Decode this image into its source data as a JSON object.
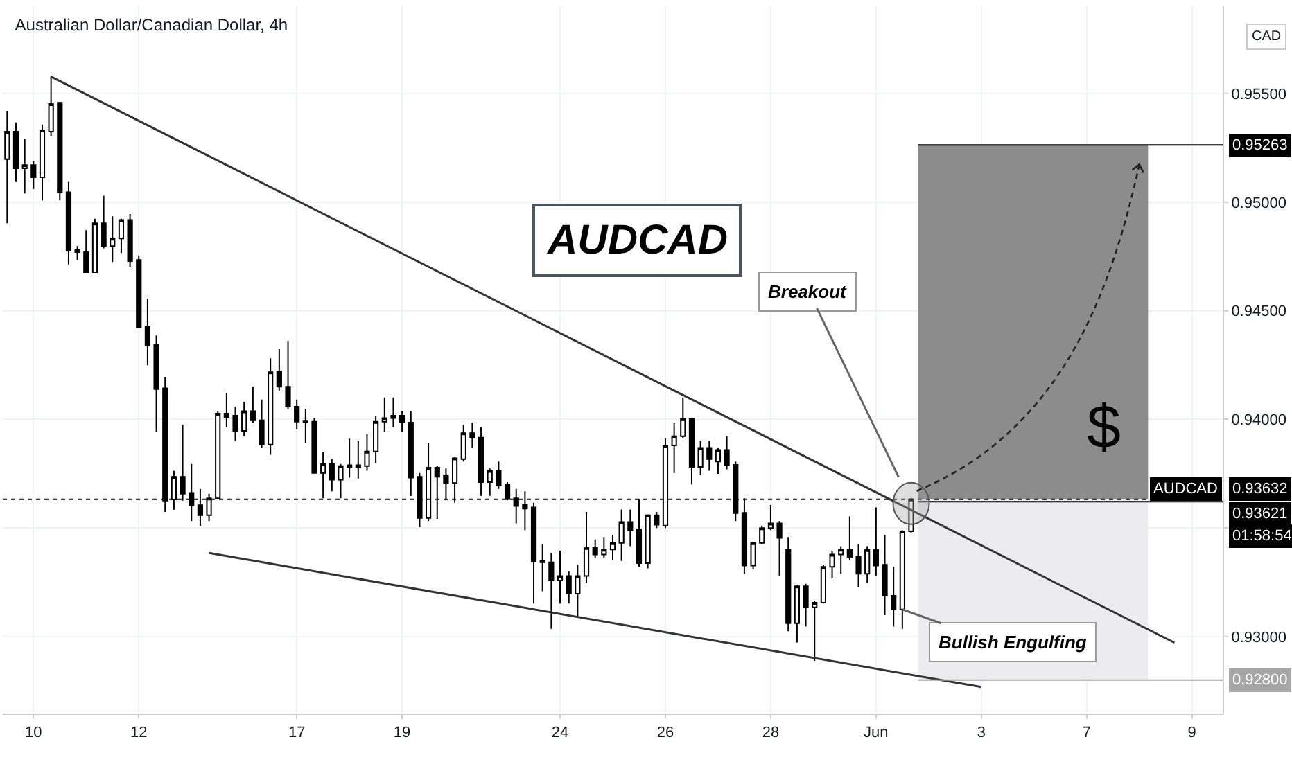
{
  "chart_data": {
    "type": "candlestick",
    "title": "Australian Dollar/Canadian Dollar, 4h",
    "categories": [
      null,
      null,
      null,
      "10",
      null,
      null,
      null,
      null,
      null,
      null,
      null,
      null,
      null,
      null,
      null,
      "12",
      null,
      null,
      null,
      null,
      null,
      null,
      null,
      null,
      null,
      null,
      null,
      null,
      null,
      null,
      null,
      null,
      null,
      "17",
      null,
      null,
      null,
      null,
      null,
      null,
      null,
      null,
      null,
      null,
      null,
      "19",
      null,
      null,
      null,
      null,
      null,
      null,
      null,
      null,
      null,
      null,
      null,
      null,
      null,
      null,
      null,
      null,
      null,
      "24",
      null,
      null,
      null,
      null,
      null,
      null,
      null,
      null,
      null,
      null,
      null,
      "26",
      null,
      null,
      null,
      null,
      null,
      null,
      null,
      null,
      null,
      null,
      null,
      "28",
      null,
      null,
      null,
      null,
      null,
      null,
      null,
      null,
      null,
      null,
      null,
      "Jun",
      null,
      null,
      null,
      null,
      null,
      null,
      null,
      null,
      null,
      null,
      null,
      "3",
      null,
      null,
      null,
      null,
      null,
      null,
      null,
      null,
      null,
      null,
      null,
      "7",
      null,
      null,
      null,
      null,
      null,
      null,
      null,
      null,
      null,
      null,
      null,
      "9",
      null,
      null,
      null
    ],
    "ohlc": [
      [
        0.95198,
        0.9542,
        0.94903,
        0.95325
      ],
      [
        0.95325,
        0.95367,
        0.95093,
        0.95156
      ],
      [
        0.95156,
        0.95293,
        0.9504,
        0.95171
      ],
      [
        0.95171,
        0.95188,
        0.95061,
        0.95114
      ],
      [
        0.95114,
        0.95357,
        0.95008,
        0.95331
      ],
      [
        0.95325,
        0.95578,
        0.95304,
        0.95452
      ],
      [
        0.95458,
        0.95462,
        0.95008,
        0.95044
      ],
      [
        0.95046,
        0.95093,
        0.94713,
        0.94776
      ],
      [
        0.94781,
        0.94798,
        0.94734,
        0.9477
      ],
      [
        0.9477,
        0.94871,
        0.94677,
        0.94677
      ],
      [
        0.94677,
        0.94924,
        0.94677,
        0.94903
      ],
      [
        0.94903,
        0.9503,
        0.94787,
        0.94798
      ],
      [
        0.94798,
        0.94935,
        0.94724,
        0.94833
      ],
      [
        0.94833,
        0.94924,
        0.94766,
        0.94918
      ],
      [
        0.94918,
        0.94945,
        0.94703,
        0.94728
      ],
      [
        0.94734,
        0.94755,
        0.94424,
        0.94424
      ],
      [
        0.94428,
        0.94555,
        0.94249,
        0.9434
      ],
      [
        0.94344,
        0.94386,
        0.93943,
        0.94139
      ],
      [
        0.94143,
        0.94196,
        0.93574,
        0.93626
      ],
      [
        0.93631,
        0.93764,
        0.93584,
        0.93736
      ],
      [
        0.93736,
        0.93975,
        0.93626,
        0.93658
      ],
      [
        0.93662,
        0.93795,
        0.93532,
        0.93605
      ],
      [
        0.93605,
        0.9368,
        0.9351,
        0.93559
      ],
      [
        0.93559,
        0.93658,
        0.93532,
        0.93637
      ],
      [
        0.93637,
        0.94038,
        0.93631,
        0.94027
      ],
      [
        0.94027,
        0.94122,
        0.93964,
        0.9401
      ],
      [
        0.94017,
        0.94059,
        0.93901,
        0.93947
      ],
      [
        0.93947,
        0.9408,
        0.93922,
        0.94038
      ],
      [
        0.94038,
        0.9415,
        0.93985,
        0.93996
      ],
      [
        0.93996,
        0.94091,
        0.93869,
        0.93884
      ],
      [
        0.93884,
        0.94281,
        0.93837,
        0.94217
      ],
      [
        0.94221,
        0.94323,
        0.94133,
        0.9415
      ],
      [
        0.9415,
        0.94361,
        0.94048,
        0.94059
      ],
      [
        0.94059,
        0.94091,
        0.93954,
        0.93989
      ],
      [
        0.93991,
        0.94048,
        0.9389,
        0.93985
      ],
      [
        0.93989,
        0.94006,
        0.93753,
        0.93753
      ],
      [
        0.93753,
        0.93848,
        0.93637,
        0.93795
      ],
      [
        0.93795,
        0.93816,
        0.93669,
        0.93722
      ],
      [
        0.93722,
        0.93795,
        0.93637,
        0.93785
      ],
      [
        0.93789,
        0.93911,
        0.93732,
        0.9378
      ],
      [
        0.93789,
        0.93901,
        0.93728,
        0.9378
      ],
      [
        0.93785,
        0.93932,
        0.93764,
        0.93852
      ],
      [
        0.93852,
        0.94017,
        0.93799,
        0.93989
      ],
      [
        0.93989,
        0.94101,
        0.93943,
        0.94006
      ],
      [
        0.94006,
        0.94101,
        0.93964,
        0.94017
      ],
      [
        0.94017,
        0.94038,
        0.93943,
        0.93985
      ],
      [
        0.93985,
        0.94038,
        0.93647,
        0.93732
      ],
      [
        0.93736,
        0.93753,
        0.93504,
        0.93546
      ],
      [
        0.93546,
        0.9389,
        0.93532,
        0.93778
      ],
      [
        0.93778,
        0.93785,
        0.93542,
        0.93736
      ],
      [
        0.93743,
        0.93774,
        0.93627,
        0.93707
      ],
      [
        0.93707,
        0.93827,
        0.93616,
        0.93821
      ],
      [
        0.93817,
        0.93975,
        0.93806,
        0.93937
      ],
      [
        0.93937,
        0.93985,
        0.93869,
        0.93916
      ],
      [
        0.93916,
        0.93964,
        0.93648,
        0.93711
      ],
      [
        0.93711,
        0.93774,
        0.93648,
        0.93764
      ],
      [
        0.93764,
        0.93806,
        0.9368,
        0.93696
      ],
      [
        0.93701,
        0.93711,
        0.93627,
        0.93633
      ],
      [
        0.93637,
        0.9368,
        0.93521,
        0.93601
      ],
      [
        0.93606,
        0.93669,
        0.9349,
        0.93589
      ],
      [
        0.93595,
        0.93616,
        0.93152,
        0.93346
      ],
      [
        0.93348,
        0.93426,
        0.93209,
        0.93342
      ],
      [
        0.93342,
        0.93384,
        0.93036,
        0.93258
      ],
      [
        0.93258,
        0.93395,
        0.93152,
        0.93279
      ],
      [
        0.93279,
        0.933,
        0.93152,
        0.93198
      ],
      [
        0.93198,
        0.93331,
        0.93089,
        0.93279
      ],
      [
        0.93279,
        0.93574,
        0.93247,
        0.93409
      ],
      [
        0.93409,
        0.93447,
        0.93363,
        0.93378
      ],
      [
        0.93378,
        0.93458,
        0.93363,
        0.93401
      ],
      [
        0.93401,
        0.93468,
        0.93352,
        0.93431
      ],
      [
        0.93431,
        0.93585,
        0.93348,
        0.93528
      ],
      [
        0.93528,
        0.93585,
        0.93416,
        0.9349
      ],
      [
        0.93494,
        0.93631,
        0.93321,
        0.93338
      ],
      [
        0.93338,
        0.93563,
        0.93314,
        0.93559
      ],
      [
        0.93559,
        0.93574,
        0.935,
        0.93515
      ],
      [
        0.93511,
        0.93912,
        0.935,
        0.9388
      ],
      [
        0.9388,
        0.93985,
        0.93753,
        0.93922
      ],
      [
        0.93922,
        0.94101,
        0.93912,
        0.94002
      ],
      [
        0.94002,
        0.94007,
        0.93701,
        0.93781
      ],
      [
        0.93781,
        0.93901,
        0.93743,
        0.93869
      ],
      [
        0.93869,
        0.93901,
        0.93764,
        0.93817
      ],
      [
        0.93806,
        0.93869,
        0.93749,
        0.93859
      ],
      [
        0.93859,
        0.93922,
        0.9377,
        0.93791
      ],
      [
        0.93791,
        0.93806,
        0.93532,
        0.93568
      ],
      [
        0.9357,
        0.93637,
        0.93289,
        0.93327
      ],
      [
        0.93327,
        0.93437,
        0.9331,
        0.93431
      ],
      [
        0.93431,
        0.93511,
        0.93426,
        0.935
      ],
      [
        0.935,
        0.93606,
        0.9349,
        0.93521
      ],
      [
        0.93521,
        0.93532,
        0.93279,
        0.93454
      ],
      [
        0.93399,
        0.93458,
        0.93025,
        0.93061
      ],
      [
        0.93061,
        0.93236,
        0.92973,
        0.93232
      ],
      [
        0.93232,
        0.93243,
        0.93046,
        0.93135
      ],
      [
        0.93135,
        0.93163,
        0.92888,
        0.93156
      ],
      [
        0.93156,
        0.93331,
        0.93152,
        0.93321
      ],
      [
        0.93321,
        0.93395,
        0.93268,
        0.93378
      ],
      [
        0.93378,
        0.93416,
        0.93289,
        0.93401
      ],
      [
        0.93401,
        0.93553,
        0.93352,
        0.93367
      ],
      [
        0.93367,
        0.93426,
        0.93226,
        0.93289
      ],
      [
        0.93289,
        0.93416,
        0.93247,
        0.93399
      ],
      [
        0.93399,
        0.93595,
        0.93279,
        0.93327
      ],
      [
        0.93331,
        0.93468,
        0.93099,
        0.93188
      ],
      [
        0.93188,
        0.93321,
        0.93046,
        0.93125
      ],
      [
        0.93125,
        0.9349,
        0.93036,
        0.93485
      ],
      [
        0.93485,
        0.93637,
        0.93479,
        0.93632
      ],
      null,
      null,
      null,
      null,
      null,
      null,
      null,
      null,
      null,
      null,
      null,
      null,
      null,
      null,
      null,
      null,
      null,
      null,
      null,
      null,
      null,
      null,
      null,
      null,
      null,
      null,
      null,
      null,
      null,
      null,
      null,
      null,
      null,
      null,
      null
    ],
    "series": [
      {
        "type": "line",
        "color": "#333333",
        "values": [
          null,
          null,
          null,
          null,
          null,
          0.95578,
          null,
          null,
          null,
          null,
          null,
          null,
          null,
          null,
          null,
          null,
          null,
          null,
          null,
          null,
          null,
          null,
          null,
          null,
          null,
          null,
          null,
          null,
          null,
          null,
          null,
          null,
          null,
          null,
          null,
          null,
          null,
          null,
          null,
          null,
          null,
          null,
          null,
          null,
          null,
          null,
          null,
          null,
          null,
          null,
          null,
          null,
          null,
          null,
          null,
          null,
          null,
          null,
          null,
          null,
          null,
          null,
          null,
          null,
          null,
          null,
          null,
          null,
          null,
          null,
          null,
          null,
          null,
          null,
          null,
          null,
          null,
          null,
          null,
          null,
          null,
          null,
          null,
          null,
          null,
          null,
          null,
          null,
          null,
          null,
          null,
          null,
          null,
          null,
          null,
          null,
          null,
          null,
          null,
          null,
          null,
          null,
          null,
          null,
          null,
          null,
          null,
          null,
          null,
          null,
          null,
          null,
          null,
          null,
          null,
          null,
          null,
          null,
          null,
          null,
          null,
          null,
          null,
          null,
          null,
          null,
          null,
          null,
          null,
          null,
          null,
          null,
          null,
          0.92972,
          null,
          null,
          null,
          null,
          null
        ]
      },
      {
        "type": "line",
        "color": "#333333",
        "values": [
          null,
          null,
          null,
          null,
          null,
          null,
          null,
          null,
          null,
          null,
          null,
          null,
          null,
          null,
          null,
          null,
          null,
          null,
          null,
          null,
          null,
          null,
          null,
          0.93385,
          null,
          null,
          null,
          null,
          null,
          null,
          null,
          null,
          null,
          null,
          null,
          null,
          null,
          null,
          null,
          null,
          null,
          null,
          null,
          null,
          null,
          null,
          null,
          null,
          null,
          null,
          null,
          null,
          null,
          null,
          null,
          null,
          null,
          null,
          null,
          null,
          null,
          null,
          null,
          null,
          null,
          null,
          null,
          null,
          null,
          null,
          null,
          null,
          null,
          null,
          null,
          null,
          null,
          null,
          null,
          null,
          null,
          null,
          null,
          null,
          null,
          null,
          null,
          null,
          null,
          null,
          null,
          null,
          null,
          null,
          null,
          null,
          null,
          null,
          null,
          null,
          null,
          null,
          null,
          null,
          null,
          null,
          null,
          null,
          null,
          null,
          null,
          0.92768,
          null,
          null,
          null,
          null,
          null,
          null,
          null,
          null,
          null,
          null,
          null,
          null,
          null,
          null,
          null,
          null,
          null,
          null,
          null,
          null,
          null,
          null,
          null,
          null,
          null,
          null,
          null
        ]
      }
    ],
    "ylim": [
      0.92646,
      0.95905
    ],
    "yticks": [
      {
        "value": 0.93,
        "label": "0.93000"
      },
      {
        "value": 0.935,
        "label": null
      },
      {
        "value": 0.94,
        "label": "0.94000"
      },
      {
        "value": 0.945,
        "label": "0.94500"
      },
      {
        "value": 0.95,
        "label": "0.95000"
      },
      {
        "value": 0.955,
        "label": "0.95500"
      }
    ],
    "grid": true,
    "bands": [
      {
        "axis": "y",
        "from": 0.93632,
        "to": 0.95263,
        "color": "#8c8c8c"
      },
      {
        "axis": "y",
        "from": 0.928,
        "to": 0.93632,
        "color": "#ececee"
      }
    ],
    "ref_lines": [
      {
        "axis": "y",
        "value": 0.95263,
        "label": "0.95263",
        "color": "#000000"
      },
      {
        "axis": "y",
        "value": 0.93632,
        "label": "0.93632",
        "color": "#000000",
        "line_style": "dotted"
      },
      {
        "axis": "y",
        "value": 0.93621,
        "label": "0.93621",
        "color": "#000000"
      },
      {
        "axis": "y",
        "value": 0.928,
        "label": "0.92800",
        "color": "#a6a6a6"
      }
    ],
    "annotations": [
      "AUDCAD",
      "Breakout",
      "Bullish Engulfing",
      "$",
      "CAD",
      "AUDCAD",
      "01:58:54"
    ]
  }
}
